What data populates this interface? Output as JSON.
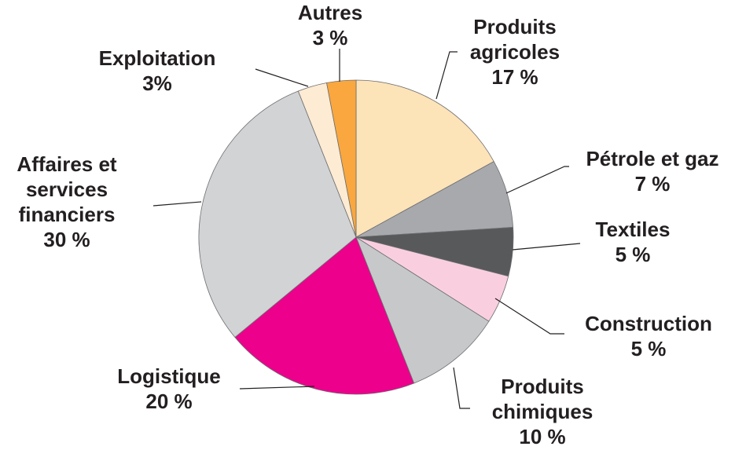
{
  "chart_data": {
    "type": "pie",
    "categories": [
      "Produits agricoles",
      "Pétrole et gaz",
      "Textiles",
      "Construction",
      "Produits chimiques",
      "Logistique",
      "Affaires et services financiers",
      "Exploitation",
      "Autres"
    ],
    "values": [
      17,
      7,
      5,
      5,
      10,
      20,
      30,
      3,
      3
    ],
    "value_labels": [
      "17 %",
      "7 %",
      "5 %",
      "5 %",
      "10 %",
      "20 %",
      "30 %",
      "3%",
      "3 %"
    ],
    "colors": [
      "#fde3b8",
      "#a7a9ac",
      "#58595b",
      "#f9cfe0",
      "#c7c8ca",
      "#ec008c",
      "#d1d3d4",
      "#fdebd3",
      "#f9a73e"
    ]
  }
}
